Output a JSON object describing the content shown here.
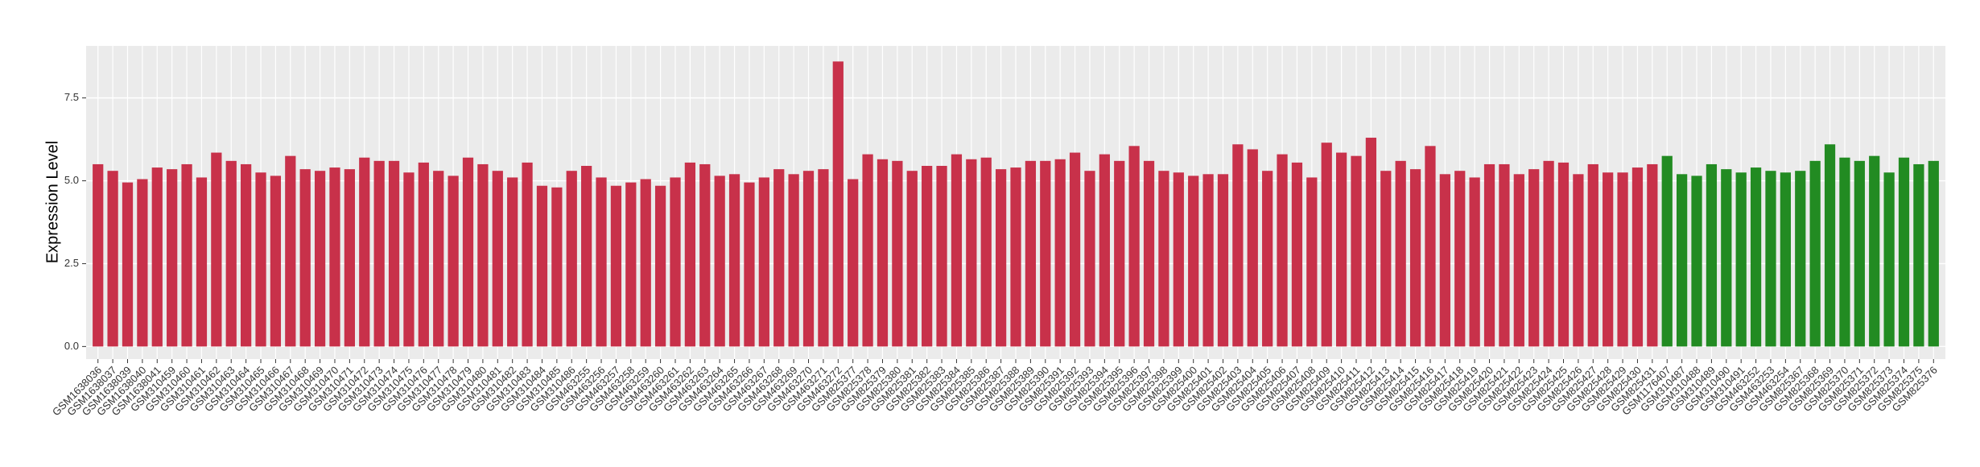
{
  "chart_data": {
    "type": "bar",
    "y_label": "Expression Level",
    "categories": [
      "GSM1638036",
      "GSM1638037",
      "GSM1638039",
      "GSM1638040",
      "GSM1638041",
      "GSM310459",
      "GSM310460",
      "GSM310461",
      "GSM310462",
      "GSM310463",
      "GSM310464",
      "GSM310465",
      "GSM310466",
      "GSM310467",
      "GSM310468",
      "GSM310469",
      "GSM310470",
      "GSM310471",
      "GSM310472",
      "GSM310473",
      "GSM310474",
      "GSM310475",
      "GSM310476",
      "GSM310477",
      "GSM310478",
      "GSM310479",
      "GSM310480",
      "GSM310481",
      "GSM310482",
      "GSM310483",
      "GSM310484",
      "GSM310485",
      "GSM310486",
      "GSM463255",
      "GSM463256",
      "GSM463257",
      "GSM463258",
      "GSM463259",
      "GSM463260",
      "GSM463261",
      "GSM463262",
      "GSM463263",
      "GSM463264",
      "GSM463265",
      "GSM463266",
      "GSM463267",
      "GSM463268",
      "GSM463269",
      "GSM463270",
      "GSM463271",
      "GSM463272",
      "GSM825377",
      "GSM825378",
      "GSM825379",
      "GSM825380",
      "GSM825381",
      "GSM825382",
      "GSM825383",
      "GSM825384",
      "GSM825385",
      "GSM825386",
      "GSM825387",
      "GSM825388",
      "GSM825389",
      "GSM825390",
      "GSM825391",
      "GSM825392",
      "GSM825393",
      "GSM825394",
      "GSM825395",
      "GSM825396",
      "GSM825397",
      "GSM825398",
      "GSM825399",
      "GSM825400",
      "GSM825401",
      "GSM825402",
      "GSM825403",
      "GSM825404",
      "GSM825405",
      "GSM825406",
      "GSM825407",
      "GSM825408",
      "GSM825409",
      "GSM825410",
      "GSM825411",
      "GSM825412",
      "GSM825413",
      "GSM825414",
      "GSM825415",
      "GSM825416",
      "GSM825417",
      "GSM825418",
      "GSM825419",
      "GSM825420",
      "GSM825421",
      "GSM825422",
      "GSM825423",
      "GSM825424",
      "GSM825425",
      "GSM825426",
      "GSM825427",
      "GSM825428",
      "GSM825429",
      "GSM825430",
      "GSM825431",
      "GSM1176407",
      "GSM310487",
      "GSM310488",
      "GSM310489",
      "GSM310490",
      "GSM310491",
      "GSM463252",
      "GSM463253",
      "GSM463254",
      "GSM825367",
      "GSM825368",
      "GSM825369",
      "GSM825370",
      "GSM825371",
      "GSM825372",
      "GSM825373",
      "GSM825374",
      "GSM825375",
      "GSM825376"
    ],
    "values": [
      5.5,
      5.3,
      4.95,
      5.05,
      5.4,
      5.35,
      5.5,
      5.1,
      5.85,
      5.6,
      5.5,
      5.25,
      5.15,
      5.75,
      5.35,
      5.3,
      5.4,
      5.35,
      5.7,
      5.6,
      5.6,
      5.25,
      5.55,
      5.3,
      5.15,
      5.7,
      5.5,
      5.3,
      5.1,
      5.55,
      4.85,
      4.8,
      5.3,
      5.45,
      5.1,
      4.85,
      4.95,
      5.05,
      4.85,
      5.1,
      5.55,
      5.5,
      5.15,
      5.2,
      4.95,
      5.1,
      5.35,
      5.2,
      5.3,
      5.35,
      8.6,
      5.05,
      5.8,
      5.65,
      5.6,
      5.3,
      5.45,
      5.45,
      5.8,
      5.65,
      5.7,
      5.35,
      5.4,
      5.6,
      5.6,
      5.65,
      5.85,
      5.3,
      5.8,
      5.6,
      6.05,
      5.6,
      5.3,
      5.25,
      5.15,
      5.2,
      5.2,
      6.1,
      5.95,
      5.3,
      5.8,
      5.55,
      5.1,
      6.15,
      5.85,
      5.75,
      6.3,
      5.3,
      5.6,
      5.35,
      6.05,
      5.2,
      5.3,
      5.1,
      5.5,
      5.5,
      5.2,
      5.35,
      5.6,
      5.55,
      5.2,
      5.5,
      5.25,
      5.25,
      5.4,
      5.5,
      5.75,
      5.2,
      5.15,
      5.5,
      5.35,
      5.25,
      5.4,
      5.3,
      5.25,
      5.3,
      5.6,
      6.1,
      5.7,
      5.6,
      5.75,
      5.25,
      5.7,
      5.5,
      5.6
    ],
    "colors": [
      "#c8314a",
      "#c8314a",
      "#c8314a",
      "#c8314a",
      "#c8314a",
      "#c8314a",
      "#c8314a",
      "#c8314a",
      "#c8314a",
      "#c8314a",
      "#c8314a",
      "#c8314a",
      "#c8314a",
      "#c8314a",
      "#c8314a",
      "#c8314a",
      "#c8314a",
      "#c8314a",
      "#c8314a",
      "#c8314a",
      "#c8314a",
      "#c8314a",
      "#c8314a",
      "#c8314a",
      "#c8314a",
      "#c8314a",
      "#c8314a",
      "#c8314a",
      "#c8314a",
      "#c8314a",
      "#c8314a",
      "#c8314a",
      "#c8314a",
      "#c8314a",
      "#c8314a",
      "#c8314a",
      "#c8314a",
      "#c8314a",
      "#c8314a",
      "#c8314a",
      "#c8314a",
      "#c8314a",
      "#c8314a",
      "#c8314a",
      "#c8314a",
      "#c8314a",
      "#c8314a",
      "#c8314a",
      "#c8314a",
      "#c8314a",
      "#c8314a",
      "#c8314a",
      "#c8314a",
      "#c8314a",
      "#c8314a",
      "#c8314a",
      "#c8314a",
      "#c8314a",
      "#c8314a",
      "#c8314a",
      "#c8314a",
      "#c8314a",
      "#c8314a",
      "#c8314a",
      "#c8314a",
      "#c8314a",
      "#c8314a",
      "#c8314a",
      "#c8314a",
      "#c8314a",
      "#c8314a",
      "#c8314a",
      "#c8314a",
      "#c8314a",
      "#c8314a",
      "#c8314a",
      "#c8314a",
      "#c8314a",
      "#c8314a",
      "#c8314a",
      "#c8314a",
      "#c8314a",
      "#c8314a",
      "#c8314a",
      "#c8314a",
      "#c8314a",
      "#c8314a",
      "#c8314a",
      "#c8314a",
      "#c8314a",
      "#c8314a",
      "#c8314a",
      "#c8314a",
      "#c8314a",
      "#c8314a",
      "#c8314a",
      "#c8314a",
      "#c8314a",
      "#c8314a",
      "#c8314a",
      "#c8314a",
      "#c8314a",
      "#c8314a",
      "#c8314a",
      "#c8314a",
      "#c8314a",
      "#228b22",
      "#228b22",
      "#228b22",
      "#228b22",
      "#228b22",
      "#228b22",
      "#228b22",
      "#228b22",
      "#228b22",
      "#228b22",
      "#228b22",
      "#228b22",
      "#228b22",
      "#228b22",
      "#228b22",
      "#228b22",
      "#228b22",
      "#228b22",
      "#228b22"
    ],
    "ylim": [
      -0.38,
      9.07
    ],
    "yticks": [
      {
        "value": 0,
        "label": "0.0"
      },
      {
        "value": 2.5,
        "label": "2.5"
      },
      {
        "value": 5,
        "label": "5.0"
      },
      {
        "value": 7.5,
        "label": "7.5"
      }
    ],
    "grid": true
  }
}
